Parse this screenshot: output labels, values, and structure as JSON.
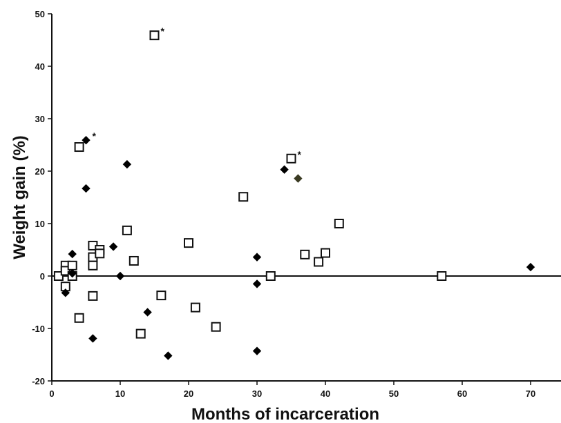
{
  "chart_data": {
    "type": "scatter",
    "title": "",
    "xlabel": "Months of incarceration",
    "ylabel": "Weight gain (%)",
    "xlim": [
      0,
      75
    ],
    "ylim": [
      -20,
      50
    ],
    "x_ticks": [
      0,
      10,
      20,
      30,
      40,
      50,
      60,
      70
    ],
    "y_ticks": [
      -20,
      -10,
      0,
      10,
      20,
      30,
      40,
      50
    ],
    "grid": false,
    "legend": "none",
    "reference_line_y": 0,
    "colors": {
      "open_square": "#111111",
      "diamond": "#000000",
      "diamond_olive": "#3a3a22"
    },
    "series": [
      {
        "marker": "open-square",
        "points": [
          {
            "x": 1,
            "y": 0
          },
          {
            "x": 2,
            "y": 2
          },
          {
            "x": 2,
            "y": 1
          },
          {
            "x": 2,
            "y": -2
          },
          {
            "x": 3,
            "y": 2
          },
          {
            "x": 3,
            "y": 0
          },
          {
            "x": 4,
            "y": 24.6
          },
          {
            "x": 4,
            "y": -8
          },
          {
            "x": 6,
            "y": 5.8
          },
          {
            "x": 6,
            "y": 3.6
          },
          {
            "x": 6,
            "y": 2
          },
          {
            "x": 6,
            "y": -3.8
          },
          {
            "x": 7,
            "y": 5
          },
          {
            "x": 7,
            "y": 4.3
          },
          {
            "x": 11,
            "y": 8.7
          },
          {
            "x": 12,
            "y": 2.9
          },
          {
            "x": 13,
            "y": -11
          },
          {
            "x": 15,
            "y": 45.9,
            "star": true
          },
          {
            "x": 16,
            "y": -3.7
          },
          {
            "x": 20,
            "y": 6.3
          },
          {
            "x": 21,
            "y": -6
          },
          {
            "x": 24,
            "y": -9.7
          },
          {
            "x": 28,
            "y": 15.1
          },
          {
            "x": 32,
            "y": 0
          },
          {
            "x": 35,
            "y": 22.4,
            "star": true
          },
          {
            "x": 37,
            "y": 4.1
          },
          {
            "x": 39,
            "y": 2.7
          },
          {
            "x": 40,
            "y": 4.4
          },
          {
            "x": 42,
            "y": 10
          },
          {
            "x": 57,
            "y": 0
          }
        ]
      },
      {
        "marker": "filled-diamond",
        "points": [
          {
            "x": 2,
            "y": -3.2
          },
          {
            "x": 3,
            "y": 4.2
          },
          {
            "x": 3,
            "y": 0.5
          },
          {
            "x": 5,
            "y": 25.9,
            "star": true
          },
          {
            "x": 5,
            "y": 16.7
          },
          {
            "x": 6,
            "y": -11.9
          },
          {
            "x": 9,
            "y": 5.6
          },
          {
            "x": 10,
            "y": 0
          },
          {
            "x": 11,
            "y": 21.3
          },
          {
            "x": 14,
            "y": -6.9
          },
          {
            "x": 17,
            "y": -15.2
          },
          {
            "x": 30,
            "y": 3.6
          },
          {
            "x": 30,
            "y": -1.5
          },
          {
            "x": 30,
            "y": -14.3
          },
          {
            "x": 34,
            "y": 20.3
          },
          {
            "x": 36,
            "y": 18.6,
            "olive": true
          },
          {
            "x": 70,
            "y": 1.7
          }
        ]
      }
    ],
    "star_label": "*"
  }
}
